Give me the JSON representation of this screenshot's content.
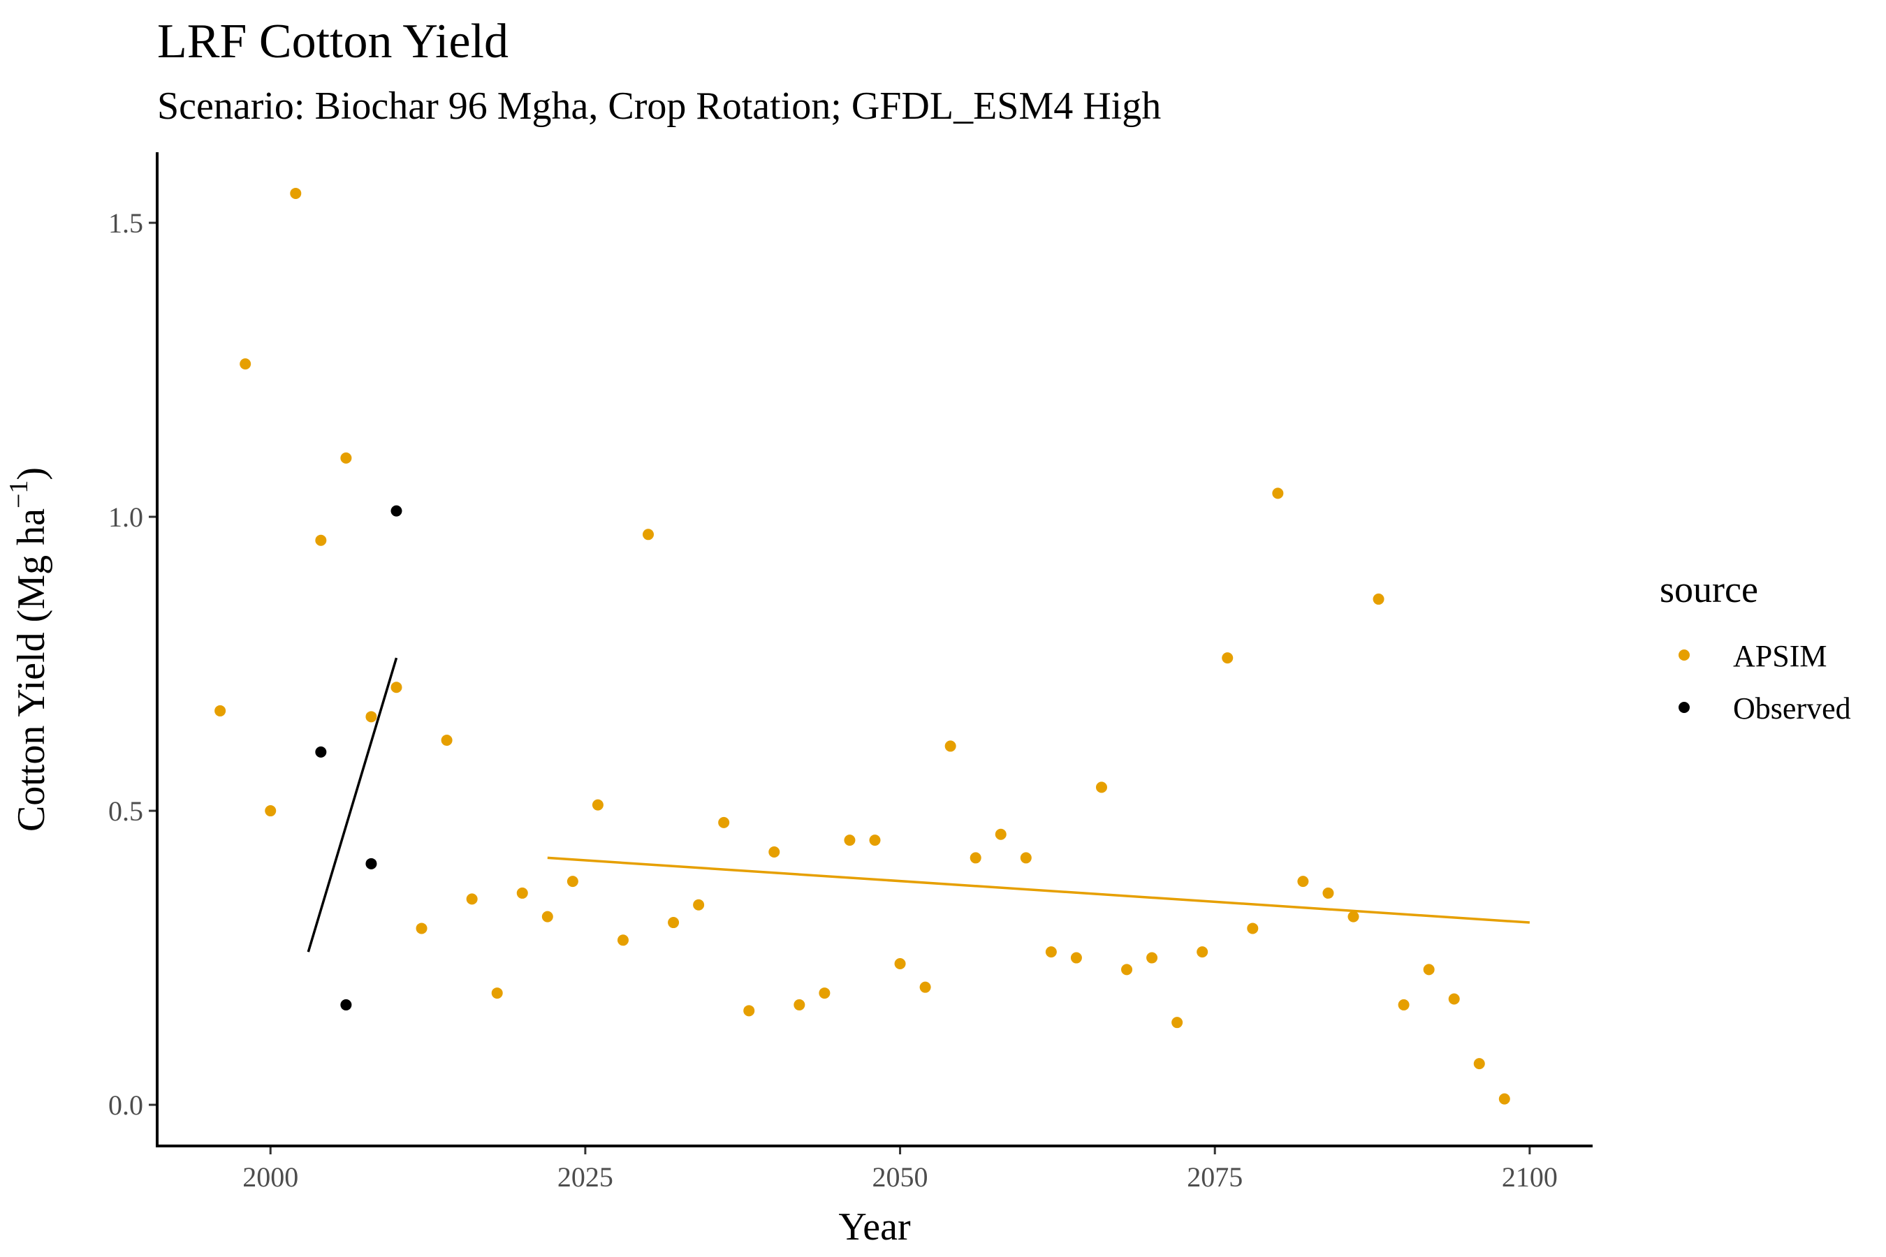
{
  "chart_data": {
    "type": "scatter",
    "title": "LRF Cotton Yield",
    "subtitle": "Scenario: Biochar 96 Mgha, Crop Rotation; GFDL_ESM4 High",
    "xlabel": "Year",
    "ylabel_main": "Cotton Yield (Mg ha",
    "ylabel_sup": "−1",
    "ylabel_close": ")",
    "xlim": [
      1991,
      2105
    ],
    "ylim": [
      -0.07,
      1.62
    ],
    "x_ticks": [
      2000,
      2025,
      2050,
      2075,
      2100
    ],
    "y_ticks": [
      0.0,
      0.5,
      1.0,
      1.5
    ],
    "x_tick_labels": [
      "2000",
      "2025",
      "2050",
      "2075",
      "2100"
    ],
    "y_tick_labels": [
      "0.0",
      "0.5",
      "1.0",
      "1.5"
    ],
    "grid": false,
    "legend": {
      "title": "source",
      "position": "right",
      "entries": [
        "APSIM",
        "Observed"
      ]
    },
    "series": [
      {
        "name": "APSIM",
        "color": "#E69F00",
        "points": [
          [
            1996,
            0.67
          ],
          [
            1998,
            1.26
          ],
          [
            2000,
            0.5
          ],
          [
            2002,
            1.55
          ],
          [
            2004,
            0.96
          ],
          [
            2006,
            1.1
          ],
          [
            2008,
            0.66
          ],
          [
            2010,
            0.71
          ],
          [
            2012,
            0.3
          ],
          [
            2014,
            0.62
          ],
          [
            2016,
            0.35
          ],
          [
            2018,
            0.19
          ],
          [
            2020,
            0.36
          ],
          [
            2022,
            0.32
          ],
          [
            2024,
            0.38
          ],
          [
            2026,
            0.51
          ],
          [
            2028,
            0.28
          ],
          [
            2030,
            0.97
          ],
          [
            2032,
            0.31
          ],
          [
            2034,
            0.34
          ],
          [
            2036,
            0.48
          ],
          [
            2038,
            0.16
          ],
          [
            2040,
            0.43
          ],
          [
            2042,
            0.17
          ],
          [
            2044,
            0.19
          ],
          [
            2046,
            0.45
          ],
          [
            2048,
            0.45
          ],
          [
            2050,
            0.24
          ],
          [
            2052,
            0.2
          ],
          [
            2054,
            0.61
          ],
          [
            2056,
            0.42
          ],
          [
            2058,
            0.46
          ],
          [
            2060,
            0.42
          ],
          [
            2062,
            0.26
          ],
          [
            2064,
            0.25
          ],
          [
            2066,
            0.54
          ],
          [
            2068,
            0.23
          ],
          [
            2070,
            0.25
          ],
          [
            2072,
            0.14
          ],
          [
            2074,
            0.26
          ],
          [
            2076,
            0.76
          ],
          [
            2078,
            0.3
          ],
          [
            2080,
            1.04
          ],
          [
            2082,
            0.38
          ],
          [
            2084,
            0.36
          ],
          [
            2086,
            0.32
          ],
          [
            2088,
            0.86
          ],
          [
            2090,
            0.17
          ],
          [
            2092,
            0.23
          ],
          [
            2094,
            0.18
          ],
          [
            2096,
            0.07
          ],
          [
            2098,
            0.01
          ]
        ],
        "trend": [
          [
            2022,
            0.42
          ],
          [
            2100,
            0.31
          ]
        ]
      },
      {
        "name": "Observed",
        "color": "#000000",
        "points": [
          [
            2004,
            0.6
          ],
          [
            2006,
            0.17
          ],
          [
            2008,
            0.41
          ],
          [
            2010,
            1.01
          ]
        ],
        "trend": [
          [
            2003,
            0.26
          ],
          [
            2010,
            0.76
          ]
        ]
      }
    ]
  }
}
